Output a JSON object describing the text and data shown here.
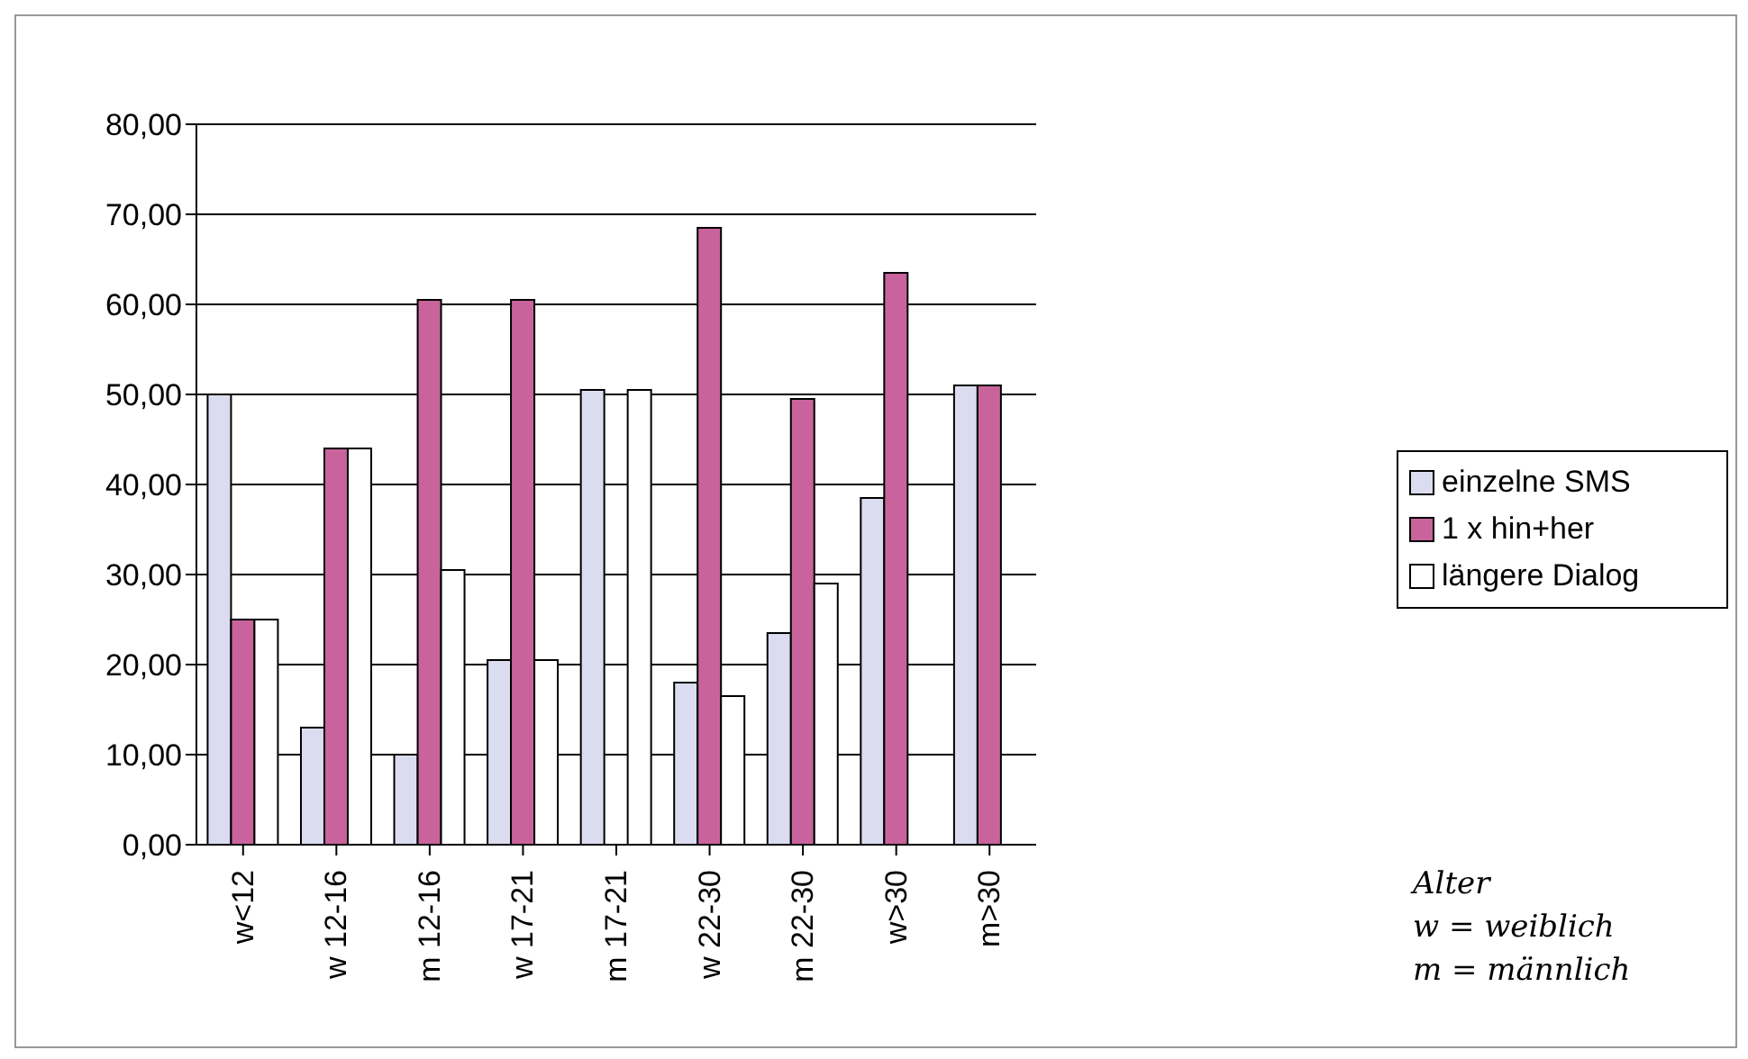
{
  "chart_data": {
    "type": "bar",
    "categories": [
      "w<12",
      "w 12-16",
      "m 12-16",
      "w 17-21",
      "m 17-21",
      "w 22-30",
      "m 22-30",
      "w>30",
      "m>30"
    ],
    "series": [
      {
        "name": "einzelne SMS",
        "color": "#dcdcf0",
        "values": [
          50,
          13,
          10,
          20.5,
          50.5,
          18,
          23.5,
          38.5,
          51
        ]
      },
      {
        "name": "1 x hin+her",
        "color": "#c8649b",
        "values": [
          25,
          44,
          60.5,
          60.5,
          0,
          68.5,
          49.5,
          63.5,
          51
        ]
      },
      {
        "name": "längere Dialog",
        "color": "#ffffff",
        "values": [
          25,
          44,
          30.5,
          20.5,
          50.5,
          16.5,
          29,
          0,
          0
        ]
      }
    ],
    "ylim": [
      0,
      80
    ],
    "yticks": [
      {
        "value": 0,
        "label": "0,00"
      },
      {
        "value": 10,
        "label": "10,00"
      },
      {
        "value": 20,
        "label": "20,00"
      },
      {
        "value": 30,
        "label": "30,00"
      },
      {
        "value": 40,
        "label": "40,00"
      },
      {
        "value": 50,
        "label": "50,00"
      },
      {
        "value": 60,
        "label": "60,00"
      },
      {
        "value": 70,
        "label": "70,00"
      },
      {
        "value": 80,
        "label": "80,00"
      }
    ],
    "grid": "y",
    "legend": "right",
    "annotations": [
      "Alter",
      "w = weiblich",
      "m = männlich"
    ]
  }
}
